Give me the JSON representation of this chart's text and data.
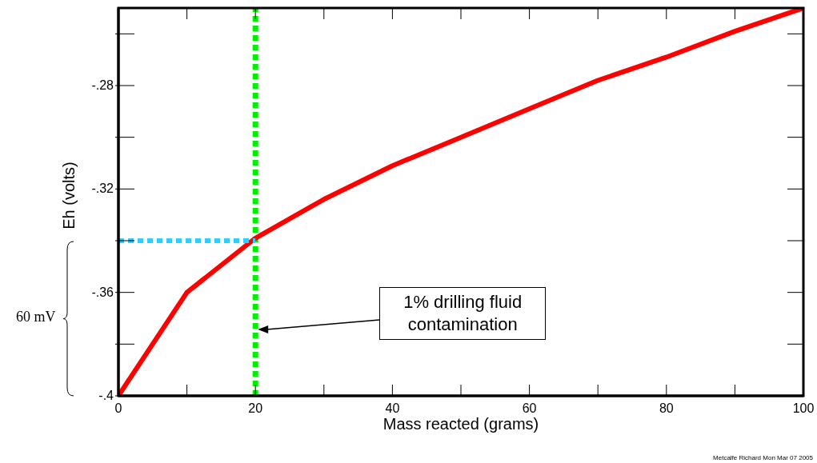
{
  "chart_data": {
    "type": "line",
    "xlabel": "Mass reacted (grams)",
    "ylabel": "Eh (volts)",
    "xlim": [
      0,
      100
    ],
    "ylim": [
      -0.4,
      -0.25
    ],
    "xticks": [
      0,
      {
        "value": 10,
        "label": null
      },
      20,
      {
        "value": 30,
        "label": null
      },
      40,
      {
        "value": 50,
        "label": null
      },
      60,
      {
        "value": 70,
        "label": null
      },
      80,
      {
        "value": 90,
        "label": null
      },
      100
    ],
    "yticks": [
      {
        "value": -0.4,
        "label": "-.4"
      },
      {
        "value": -0.38,
        "label": null
      },
      {
        "value": -0.36,
        "label": "-.36"
      },
      {
        "value": -0.34,
        "label": null
      },
      {
        "value": -0.32,
        "label": "-.32"
      },
      {
        "value": -0.3,
        "label": null
      },
      {
        "value": -0.28,
        "label": "-.28"
      },
      {
        "value": -0.26,
        "label": null
      }
    ],
    "series": [
      {
        "color": "#ff0000",
        "line_style": "solid",
        "x": [
          0,
          10,
          20,
          30,
          40,
          50,
          60,
          70,
          80,
          90,
          100
        ],
        "values": [
          -0.4,
          -0.36,
          -0.339,
          -0.324,
          -0.311,
          -0.3,
          -0.289,
          -0.278,
          -0.269,
          -0.259,
          -0.25
        ]
      },
      {
        "color": "#33ccff",
        "line_style": "dotted",
        "x": [
          0,
          20
        ],
        "values": [
          -0.34,
          -0.34
        ]
      }
    ],
    "ref_lines": [
      {
        "axis": "x",
        "value": 20,
        "color": "#00ee00",
        "line_style": "dotted"
      }
    ],
    "annotations": [
      "1% drilling fluid contamination",
      "60 mV",
      "Metcalfe Richard Mon Mar 07 2005"
    ],
    "marker": "none"
  }
}
